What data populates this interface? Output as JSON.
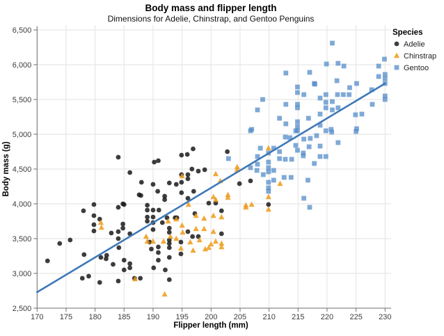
{
  "title": "Body mass and flipper length",
  "subtitle": "Dimensions for Adelie, Chinstrap, and Gentoo Penguins",
  "colors": {
    "grid": "#e2e2e2",
    "axis": "#6e6e6e",
    "trend_line": "#3e78b8",
    "adelie": "#1a1a1a",
    "chinstrap": "#ed9a18",
    "gentoo": "#548cc8",
    "adelie_legend": "#3f3f3f",
    "chinstrap_legend": "#f0a73c",
    "gentoo_legend": "#7fa9d6"
  },
  "legend": {
    "title": "Species",
    "entries": [
      {
        "label": "Adelie",
        "symbol": "circle",
        "color": "#3f3f3f"
      },
      {
        "label": "Chinstrap",
        "symbol": "triangle",
        "color": "#f0a73c"
      },
      {
        "label": "Gentoo",
        "symbol": "square",
        "color": "#7fa9d6"
      }
    ]
  },
  "chart_data": {
    "type": "scatter",
    "title": "Body mass and flipper length",
    "subtitle": "Dimensions for Adelie, Chinstrap, and Gentoo Penguins",
    "xlabel": "Flipper length (mm)",
    "ylabel": "Body mass (g)",
    "xlim": [
      170,
      231
    ],
    "ylim": [
      2500,
      6570
    ],
    "x_ticks": [
      170,
      175,
      180,
      185,
      190,
      195,
      200,
      205,
      210,
      215,
      220,
      225,
      230
    ],
    "y_ticks": [
      2500,
      3000,
      3500,
      4000,
      4500,
      5000,
      5500,
      6000,
      6500
    ],
    "grid": true,
    "legend_position": "top-right",
    "trend_line": {
      "x1": 170,
      "y1": 2730,
      "x2": 230,
      "y2": 5730
    },
    "series": [
      {
        "name": "Adelie",
        "symbol": "circle",
        "points": [
          [
            171.8,
            3180
          ],
          [
            173.9,
            3430
          ],
          [
            175.7,
            3480
          ],
          [
            177.8,
            2930
          ],
          [
            178.0,
            3900
          ],
          [
            178.1,
            3270
          ],
          [
            178.9,
            2960
          ],
          [
            179.8,
            3990
          ],
          [
            179.8,
            3830
          ],
          [
            179.8,
            3700
          ],
          [
            179.8,
            3610
          ],
          [
            180.8,
            3780
          ],
          [
            180.8,
            2870
          ],
          [
            181.0,
            3230
          ],
          [
            181.9,
            3210
          ],
          [
            182.0,
            3260
          ],
          [
            182.8,
            3580
          ],
          [
            183.1,
            3130
          ],
          [
            184.0,
            3950
          ],
          [
            184.0,
            3600
          ],
          [
            184.0,
            3500
          ],
          [
            184.1,
            3370
          ],
          [
            184.0,
            2890
          ],
          [
            184.0,
            4670
          ],
          [
            184.8,
            4000
          ],
          [
            184.8,
            3710
          ],
          [
            184.8,
            3650
          ],
          [
            185.0,
            3190
          ],
          [
            185.0,
            3050
          ],
          [
            185.0,
            3990
          ],
          [
            186.0,
            4450
          ],
          [
            186.0,
            3570
          ],
          [
            186.0,
            3140
          ],
          [
            186.0,
            3080
          ],
          [
            186.8,
            2930
          ],
          [
            187.8,
            2930
          ],
          [
            187.6,
            4130
          ],
          [
            188.0,
            4310
          ],
          [
            187.9,
            4120
          ],
          [
            189.0,
            3980
          ],
          [
            189.0,
            3910
          ],
          [
            189.0,
            3810
          ],
          [
            189.0,
            3750
          ],
          [
            189.4,
            3450
          ],
          [
            189.7,
            3350
          ],
          [
            190.0,
            4280
          ],
          [
            190.0,
            3910
          ],
          [
            190.0,
            3810
          ],
          [
            190.0,
            3730
          ],
          [
            190.0,
            3630
          ],
          [
            190.2,
            4600
          ],
          [
            190.9,
            4620
          ],
          [
            190.9,
            3380
          ],
          [
            190.9,
            3300
          ],
          [
            190.9,
            3190
          ],
          [
            190.1,
            3080
          ],
          [
            190.8,
            4180
          ],
          [
            191.0,
            3910
          ],
          [
            191.6,
            3730
          ],
          [
            192.0,
            4110
          ],
          [
            192.0,
            4060
          ],
          [
            192.1,
            3050
          ],
          [
            192.4,
            3800
          ],
          [
            192.8,
            4300
          ],
          [
            192.8,
            3650
          ],
          [
            192.8,
            3590
          ],
          [
            192.8,
            3480
          ],
          [
            192.8,
            3430
          ],
          [
            192.8,
            3370
          ],
          [
            192.8,
            3230
          ],
          [
            192.8,
            2910
          ],
          [
            193.8,
            3800
          ],
          [
            194.0,
            4280
          ],
          [
            194.1,
            3800
          ],
          [
            194.8,
            3450
          ],
          [
            194.8,
            3280
          ],
          [
            194.9,
            4420
          ],
          [
            194.9,
            4310
          ],
          [
            194.9,
            4160
          ],
          [
            194.9,
            4700
          ],
          [
            195.9,
            4710
          ],
          [
            196.0,
            4420
          ],
          [
            196.0,
            4360
          ],
          [
            196.0,
            4080
          ],
          [
            196.0,
            3600
          ],
          [
            196.9,
            4790
          ],
          [
            196.7,
            4500
          ],
          [
            197.0,
            4180
          ],
          [
            197.2,
            3860
          ],
          [
            196.8,
            3530
          ],
          [
            197.8,
            4470
          ],
          [
            197.8,
            3530
          ],
          [
            198.9,
            4490
          ],
          [
            199.6,
            4010
          ],
          [
            200.8,
            4010
          ],
          [
            201.8,
            3900
          ],
          [
            201.8,
            3570
          ],
          [
            202.8,
            4750
          ],
          [
            204.9,
            4290
          ],
          [
            206.8,
            4330
          ],
          [
            209.9,
            3990
          ]
        ]
      },
      {
        "name": "Chinstrap",
        "symbol": "triangle",
        "points": [
          [
            181.0,
            3730
          ],
          [
            181.1,
            3660
          ],
          [
            186.9,
            2920
          ],
          [
            188.8,
            3530
          ],
          [
            189.0,
            3460
          ],
          [
            190.0,
            3460
          ],
          [
            191.8,
            3460
          ],
          [
            192.0,
            2700
          ],
          [
            192.6,
            3750
          ],
          [
            193.0,
            3530
          ],
          [
            194.0,
            3780
          ],
          [
            194.0,
            3500
          ],
          [
            194.8,
            3360
          ],
          [
            195.0,
            4400
          ],
          [
            195.0,
            3690
          ],
          [
            195.1,
            3590
          ],
          [
            196.1,
            3990
          ],
          [
            196.4,
            3450
          ],
          [
            196.9,
            3330
          ],
          [
            197.4,
            3830
          ],
          [
            197.4,
            3640
          ],
          [
            198.0,
            3480
          ],
          [
            198.8,
            3790
          ],
          [
            198.8,
            3640
          ],
          [
            199.0,
            3350
          ],
          [
            199.6,
            3370
          ],
          [
            200.0,
            3420
          ],
          [
            200.4,
            4100
          ],
          [
            200.4,
            3830
          ],
          [
            200.4,
            3600
          ],
          [
            200.8,
            4430
          ],
          [
            200.8,
            4060
          ],
          [
            200.8,
            3460
          ],
          [
            201.6,
            4330
          ],
          [
            201.8,
            3810
          ],
          [
            201.8,
            3430
          ],
          [
            201.8,
            3380
          ],
          [
            202.9,
            4130
          ],
          [
            202.9,
            4090
          ],
          [
            204.5,
            4530
          ],
          [
            204.5,
            4490
          ],
          [
            206.0,
            3980
          ],
          [
            206.0,
            3950
          ],
          [
            207.0,
            3990
          ],
          [
            209.9,
            4800
          ],
          [
            209.9,
            4100
          ],
          [
            209.9,
            3920
          ],
          [
            211.9,
            4290
          ]
        ]
      },
      {
        "name": "Gentoo",
        "symbol": "square",
        "points": [
          [
            203.0,
            4650
          ],
          [
            206.8,
            4520
          ],
          [
            206.8,
            5050
          ],
          [
            207.0,
            5070
          ],
          [
            208.0,
            5350
          ],
          [
            207.9,
            4480
          ],
          [
            208.0,
            4680
          ],
          [
            208.0,
            4570
          ],
          [
            208.5,
            4800
          ],
          [
            208.9,
            5500
          ],
          [
            209.0,
            4420
          ],
          [
            209.9,
            4730
          ],
          [
            209.9,
            4600
          ],
          [
            209.9,
            4520
          ],
          [
            209.9,
            4460
          ],
          [
            209.9,
            4310
          ],
          [
            209.9,
            4230
          ],
          [
            209.9,
            4180
          ],
          [
            210.8,
            4800
          ],
          [
            210.8,
            4480
          ],
          [
            210.8,
            4340
          ],
          [
            211.8,
            5230
          ],
          [
            211.8,
            4750
          ],
          [
            211.8,
            4650
          ],
          [
            212.6,
            4380
          ],
          [
            212.8,
            4960
          ],
          [
            212.8,
            4640
          ],
          [
            212.9,
            5430
          ],
          [
            212.9,
            5150
          ],
          [
            212.9,
            5880
          ],
          [
            213.6,
            4950
          ],
          [
            213.8,
            4380
          ],
          [
            213.9,
            4640
          ],
          [
            214.6,
            5050
          ],
          [
            214.6,
            4840
          ],
          [
            214.9,
            5680
          ],
          [
            214.9,
            5600
          ],
          [
            214.9,
            5430
          ],
          [
            214.9,
            5380
          ],
          [
            214.9,
            5180
          ],
          [
            214.9,
            5110
          ],
          [
            214.9,
            5050
          ],
          [
            214.9,
            4770
          ],
          [
            215.9,
            4730
          ],
          [
            215.9,
            4690
          ],
          [
            216.0,
            5570
          ],
          [
            216.8,
            5230
          ],
          [
            216.0,
            4930
          ],
          [
            216.0,
            4080
          ],
          [
            216.7,
            4340
          ],
          [
            216.9,
            4820
          ],
          [
            217.0,
            5890
          ],
          [
            217.1,
            4940
          ],
          [
            217.0,
            3950
          ],
          [
            217.8,
            5730
          ],
          [
            217.9,
            5720
          ],
          [
            217.8,
            4580
          ],
          [
            218.2,
            4980
          ],
          [
            218.8,
            5520
          ],
          [
            218.8,
            5290
          ],
          [
            218.8,
            5130
          ],
          [
            218.8,
            4830
          ],
          [
            218.8,
            4680
          ],
          [
            219.9,
            6010
          ],
          [
            219.8,
            5570
          ],
          [
            219.8,
            5460
          ],
          [
            219.8,
            5380
          ],
          [
            219.8,
            5050
          ],
          [
            219.8,
            4680
          ],
          [
            220.8,
            5030
          ],
          [
            220.9,
            6310
          ],
          [
            220.9,
            5470
          ],
          [
            220.9,
            5350
          ],
          [
            220.7,
            5070
          ],
          [
            221.7,
            5770
          ],
          [
            221.8,
            5570
          ],
          [
            221.9,
            6020
          ],
          [
            221.9,
            5380
          ],
          [
            221.9,
            4880
          ],
          [
            222.8,
            5570
          ],
          [
            222.9,
            5980
          ],
          [
            223.8,
            5570
          ],
          [
            223.9,
            5670
          ],
          [
            224.9,
            5280
          ],
          [
            225.0,
            5040
          ],
          [
            225.1,
            5730
          ],
          [
            225.1,
            5080
          ],
          [
            226.0,
            5290
          ],
          [
            227.7,
            5640
          ],
          [
            227.8,
            5430
          ],
          [
            228.9,
            5980
          ],
          [
            228.9,
            5830
          ],
          [
            229.9,
            6080
          ],
          [
            230.0,
            5860
          ],
          [
            230.0,
            5800
          ],
          [
            230.0,
            5730
          ],
          [
            230.0,
            5550
          ],
          [
            230.0,
            5500
          ]
        ]
      }
    ]
  }
}
